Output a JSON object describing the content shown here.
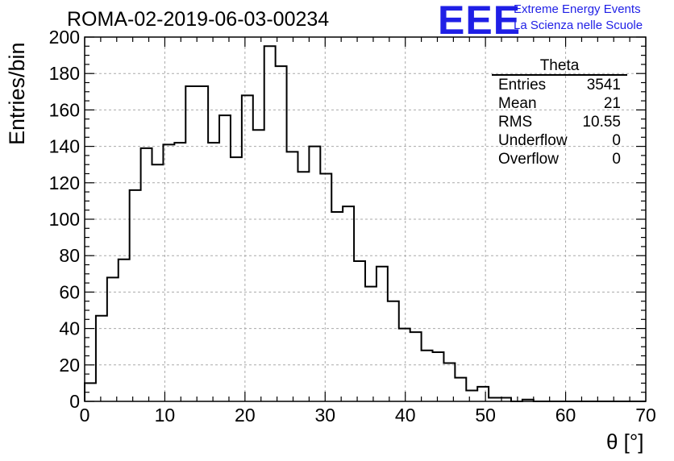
{
  "title": "ROMA-02-2019-06-03-00234",
  "logo": {
    "mark": "EEE",
    "line1": "Extreme Energy Events",
    "line2": "La Scienza nelle Scuole",
    "color": "#1f1fe6"
  },
  "stats": {
    "name": "Theta",
    "rows": [
      {
        "label": "Entries",
        "value": "3541"
      },
      {
        "label": "Mean",
        "value": "21"
      },
      {
        "label": "RMS",
        "value": "10.55"
      },
      {
        "label": "Underflow",
        "value": "0"
      },
      {
        "label": "Overflow",
        "value": "0"
      }
    ]
  },
  "chart_data": {
    "type": "bar",
    "title": "ROMA-02-2019-06-03-00234",
    "xlabel": "θ [°]",
    "ylabel": "Entries/bin",
    "xlim": [
      0,
      70
    ],
    "ylim": [
      0,
      200
    ],
    "grid": true,
    "bin_width": 1.4,
    "xticks": [
      0,
      10,
      20,
      30,
      40,
      50,
      60,
      70
    ],
    "yticks": [
      0,
      20,
      40,
      60,
      80,
      100,
      120,
      140,
      160,
      180,
      200
    ],
    "values": [
      10,
      47,
      68,
      78,
      116,
      139,
      130,
      141,
      142,
      173,
      173,
      142,
      157,
      134,
      168,
      149,
      195,
      184,
      137,
      126,
      140,
      125,
      104,
      107,
      77,
      63,
      74,
      55,
      40,
      38,
      28,
      27,
      21,
      13,
      6,
      8,
      2,
      2,
      0,
      1,
      0,
      0,
      0,
      0,
      0,
      0,
      0,
      0,
      0,
      0
    ]
  }
}
